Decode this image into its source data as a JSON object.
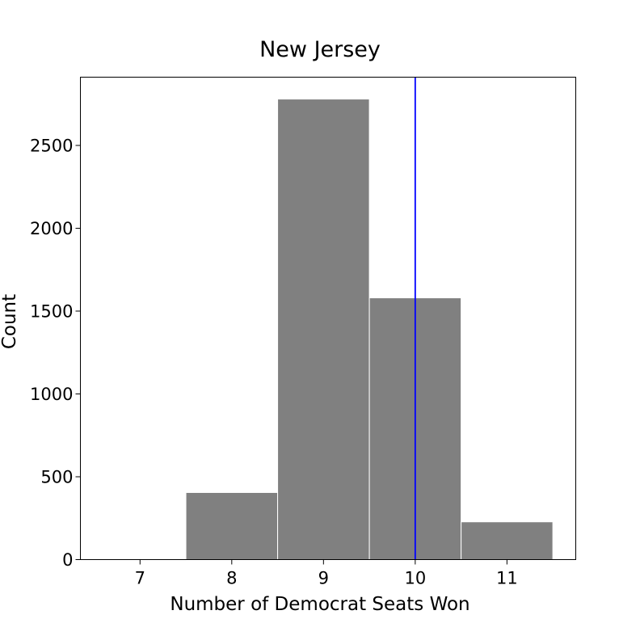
{
  "chart_data": {
    "type": "bar",
    "title": "New Jersey",
    "xlabel": "Number of Democrat Seats Won",
    "ylabel": "Count",
    "categories": [
      7,
      8,
      9,
      10,
      11
    ],
    "values": [
      0,
      405,
      2780,
      1580,
      228
    ],
    "xlim": [
      6.35,
      11.75
    ],
    "ylim": [
      0,
      2912
    ],
    "xticks": [
      "7",
      "8",
      "9",
      "10",
      "11"
    ],
    "yticks": [
      0,
      500,
      1000,
      1500,
      2000,
      2500
    ],
    "reference_line": {
      "x": 10,
      "color": "#0000ff"
    },
    "bar_color": "#808080",
    "grid": false,
    "legend": "none"
  }
}
